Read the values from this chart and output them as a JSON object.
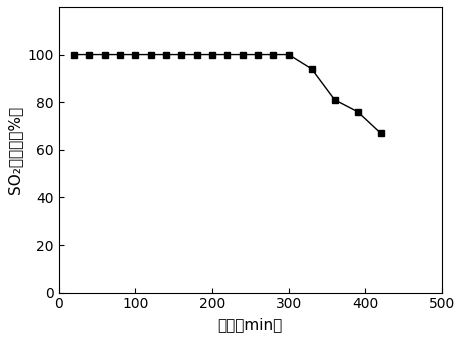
{
  "x": [
    20,
    40,
    60,
    80,
    100,
    120,
    140,
    160,
    180,
    200,
    220,
    240,
    260,
    280,
    300,
    330,
    360,
    390,
    420
  ],
  "y": [
    100,
    100,
    100,
    100,
    100,
    100,
    100,
    100,
    100,
    100,
    100,
    100,
    100,
    100,
    100,
    94,
    81,
    76,
    67
  ],
  "xlabel": "时间（min）",
  "ylabel_line1": "SO₂去除率（%）",
  "xlim": [
    0,
    500
  ],
  "ylim": [
    0,
    120
  ],
  "xticks": [
    0,
    100,
    200,
    300,
    400,
    500
  ],
  "yticks": [
    0,
    20,
    40,
    60,
    80,
    100
  ],
  "line_color": "#000000",
  "marker": "s",
  "marker_color": "#000000",
  "marker_size": 5,
  "line_width": 1.0,
  "bg_color": "#ffffff",
  "tick_fontsize": 10,
  "label_fontsize": 11
}
